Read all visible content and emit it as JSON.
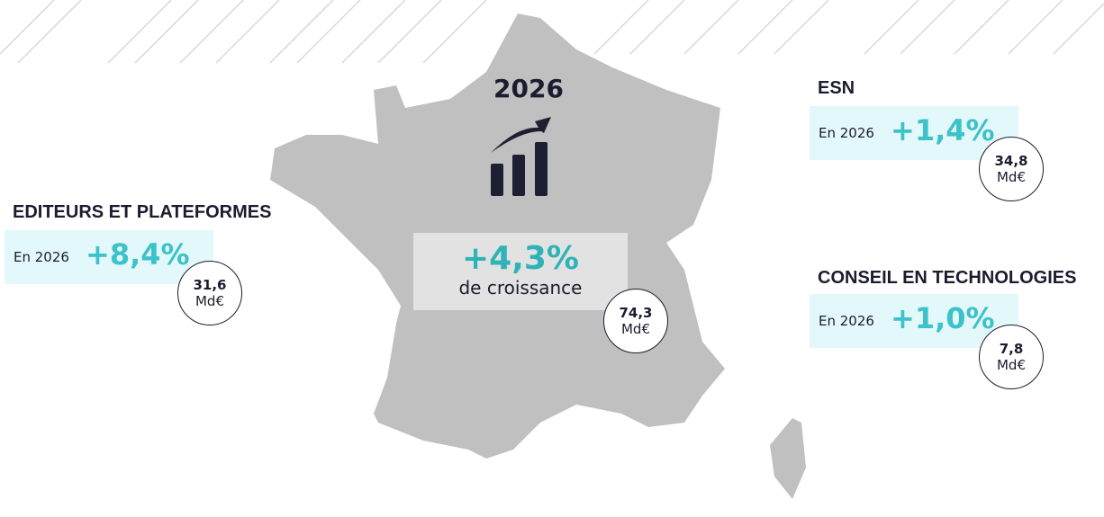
{
  "year": "2026",
  "total": {
    "growth": "+4,3%",
    "caption": "de croissance",
    "amount": "74,3",
    "unit": "Md€"
  },
  "segments": [
    {
      "title": "EDITEURS ET PLATEFORMES",
      "label": "En 2026",
      "growth": "+8,4%",
      "amount": "31,6",
      "unit": "Md€"
    },
    {
      "title": "ESN",
      "label": "En 2026",
      "growth": "+1,4%",
      "amount": "34,8",
      "unit": "Md€"
    },
    {
      "title": "CONSEIL EN TECHNOLOGIES",
      "label": "En 2026",
      "growth": "+1,0%",
      "amount": "7,8",
      "unit": "Md€"
    }
  ]
}
